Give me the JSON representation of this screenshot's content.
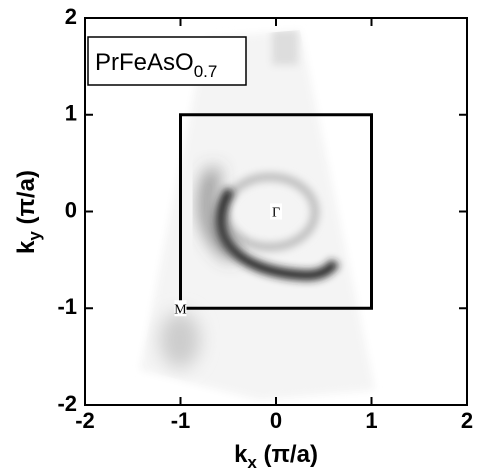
{
  "chart_data": {
    "type": "image",
    "annotation": {
      "main": "PrFeAsO",
      "sub": "0.7"
    },
    "xlabel": {
      "main": "k",
      "sub": "x",
      "rest": " (π/a)"
    },
    "ylabel": {
      "main": "k",
      "sub": "y",
      "rest": " (π/a)"
    },
    "xlim": [
      -2,
      2
    ],
    "ylim": [
      -2,
      2
    ],
    "xticks": [
      -2,
      -1,
      0,
      1,
      2
    ],
    "yticks": [
      -2,
      -1,
      0,
      1,
      2
    ],
    "zone": {
      "x": [
        -1,
        1,
        1,
        -1
      ],
      "y": [
        1,
        1,
        -1,
        -1
      ],
      "color": "#000000"
    },
    "points": [
      {
        "label": "Γ",
        "x": 0,
        "y": 0
      },
      {
        "label": "M",
        "x": -1,
        "y": -1
      }
    ]
  }
}
